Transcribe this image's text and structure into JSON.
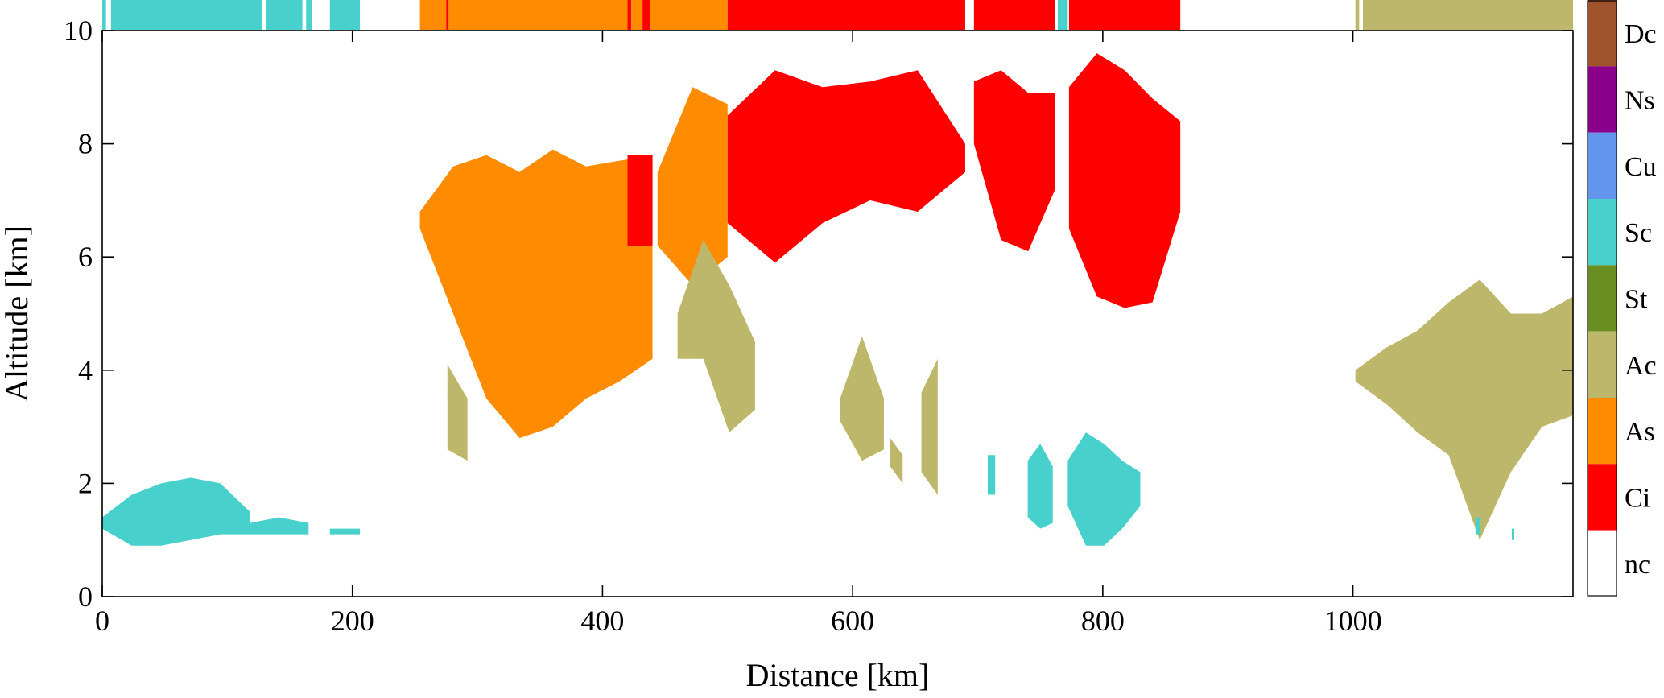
{
  "chart_data": {
    "type": "heatmap",
    "xlabel": "Distance [km]",
    "ylabel": "Altitude [km]",
    "xlim": [
      0,
      1176
    ],
    "ylim": [
      0,
      10
    ],
    "x_ticks": [
      0,
      200,
      400,
      600,
      800,
      1000
    ],
    "y_ticks": [
      0,
      2,
      4,
      6,
      8,
      10
    ],
    "colorbar": {
      "placement": "right",
      "classes": [
        {
          "label": "Dc",
          "color": "#A0522D"
        },
        {
          "label": "Ns",
          "color": "#8B008B"
        },
        {
          "label": "Cu",
          "color": "#6495ED"
        },
        {
          "label": "Sc",
          "color": "#48D1CC"
        },
        {
          "label": "St",
          "color": "#6B8E23"
        },
        {
          "label": "Ac",
          "color": "#BDB76B"
        },
        {
          "label": "As",
          "color": "#FF8C00"
        },
        {
          "label": "Ci",
          "color": "#FF0000"
        },
        {
          "label": "nc",
          "color": "#FFFFFF"
        }
      ]
    },
    "column_type_strip": [
      {
        "x0": 0,
        "x1": 3,
        "cls": "Sc"
      },
      {
        "x0": 7,
        "x1": 128,
        "cls": "Sc"
      },
      {
        "x0": 131,
        "x1": 160,
        "cls": "Sc"
      },
      {
        "x0": 163,
        "x1": 168,
        "cls": "Sc"
      },
      {
        "x0": 182,
        "x1": 206,
        "cls": "Sc"
      },
      {
        "x0": 254,
        "x1": 275,
        "cls": "As"
      },
      {
        "x0": 275,
        "x1": 277,
        "cls": "Ci"
      },
      {
        "x0": 277,
        "x1": 420,
        "cls": "As"
      },
      {
        "x0": 420,
        "x1": 423,
        "cls": "Ci"
      },
      {
        "x0": 423,
        "x1": 432,
        "cls": "As"
      },
      {
        "x0": 432,
        "x1": 438,
        "cls": "Ci"
      },
      {
        "x0": 438,
        "x1": 500,
        "cls": "As"
      },
      {
        "x0": 500,
        "x1": 690,
        "cls": "Ci"
      },
      {
        "x0": 697,
        "x1": 762,
        "cls": "Ci"
      },
      {
        "x0": 764,
        "x1": 772,
        "cls": "Sc"
      },
      {
        "x0": 773,
        "x1": 862,
        "cls": "Ci"
      },
      {
        "x0": 1002,
        "x1": 1005,
        "cls": "Ac"
      },
      {
        "x0": 1008,
        "x1": 1176,
        "cls": "Ac"
      }
    ],
    "regions": [
      {
        "cls": "Sc",
        "x": [
          0,
          118
        ],
        "bottom": [
          1.2,
          0.9,
          0.9,
          1.0,
          1.1,
          1.1
        ],
        "top": [
          1.4,
          1.8,
          2.0,
          2.1,
          2.0,
          1.5
        ]
      },
      {
        "cls": "Sc",
        "x": [
          118,
          165
        ],
        "bottom": [
          1.1,
          1.1,
          1.1
        ],
        "top": [
          1.3,
          1.4,
          1.3
        ]
      },
      {
        "cls": "Sc",
        "x": [
          182,
          206
        ],
        "bottom": [
          1.1,
          1.1
        ],
        "top": [
          1.2,
          1.2
        ]
      },
      {
        "cls": "As",
        "x": [
          254,
          440
        ],
        "bottom": [
          6.5,
          5.0,
          3.5,
          2.8,
          3.0,
          3.5,
          3.8,
          4.2
        ],
        "top": [
          6.8,
          7.6,
          7.8,
          7.5,
          7.9,
          7.6,
          7.7,
          7.8
        ]
      },
      {
        "cls": "Ci",
        "x": [
          420,
          440
        ],
        "bottom": [
          6.2,
          6.2
        ],
        "top": [
          7.8,
          7.8
        ]
      },
      {
        "cls": "As",
        "x": [
          444,
          500
        ],
        "bottom": [
          6.2,
          5.5,
          6.0
        ],
        "top": [
          7.5,
          9.0,
          8.7
        ]
      },
      {
        "cls": "Ac",
        "x": [
          276,
          292
        ],
        "bottom": [
          2.6,
          2.4
        ],
        "top": [
          4.1,
          3.5
        ]
      },
      {
        "cls": "Ac",
        "x": [
          460,
          522
        ],
        "bottom": [
          4.2,
          4.2,
          2.9,
          3.3
        ],
        "top": [
          5.0,
          6.3,
          5.5,
          4.5
        ]
      },
      {
        "cls": "Ci",
        "x": [
          500,
          690
        ],
        "bottom": [
          6.6,
          5.9,
          6.6,
          7.0,
          6.8,
          7.5
        ],
        "top": [
          8.5,
          9.3,
          9.0,
          9.1,
          9.3,
          8.0
        ]
      },
      {
        "cls": "Ci",
        "x": [
          697,
          762
        ],
        "bottom": [
          8.0,
          6.3,
          6.1,
          7.2
        ],
        "top": [
          9.1,
          9.3,
          8.9,
          8.9
        ]
      },
      {
        "cls": "Ci",
        "x": [
          773,
          862
        ],
        "bottom": [
          6.5,
          5.3,
          5.1,
          5.2,
          6.8
        ],
        "top": [
          9.0,
          9.6,
          9.3,
          8.8,
          8.4
        ]
      },
      {
        "cls": "Ac",
        "x": [
          590,
          625
        ],
        "bottom": [
          3.1,
          2.4,
          2.6
        ],
        "top": [
          3.5,
          4.6,
          3.5
        ]
      },
      {
        "cls": "Ac",
        "x": [
          630,
          640
        ],
        "bottom": [
          2.3,
          2.0
        ],
        "top": [
          2.8,
          2.5
        ]
      },
      {
        "cls": "Ac",
        "x": [
          655,
          668
        ],
        "bottom": [
          2.2,
          1.8
        ],
        "top": [
          3.6,
          4.2
        ]
      },
      {
        "cls": "Sc",
        "x": [
          708,
          714
        ],
        "bottom": [
          1.8,
          1.8
        ],
        "top": [
          2.5,
          2.5
        ]
      },
      {
        "cls": "Sc",
        "x": [
          740,
          760
        ],
        "bottom": [
          1.4,
          1.2,
          1.3
        ],
        "top": [
          2.4,
          2.7,
          2.3
        ]
      },
      {
        "cls": "Sc",
        "x": [
          772,
          830
        ],
        "bottom": [
          1.6,
          0.9,
          0.9,
          1.2,
          1.6
        ],
        "top": [
          2.4,
          2.9,
          2.7,
          2.4,
          2.2
        ]
      },
      {
        "cls": "Ac",
        "x": [
          1002,
          1176
        ],
        "bottom": [
          3.8,
          3.4,
          2.9,
          2.5,
          1.0,
          2.2,
          3.0,
          3.2
        ],
        "top": [
          4.0,
          4.4,
          4.7,
          5.2,
          5.6,
          5.0,
          5.0,
          5.3
        ]
      },
      {
        "cls": "Sc",
        "x": [
          1098,
          1102
        ],
        "bottom": [
          1.1,
          1.1
        ],
        "top": [
          1.4,
          1.4
        ]
      },
      {
        "cls": "Sc",
        "x": [
          1127,
          1129
        ],
        "bottom": [
          1.0,
          1.0
        ],
        "top": [
          1.2,
          1.2
        ]
      }
    ]
  }
}
